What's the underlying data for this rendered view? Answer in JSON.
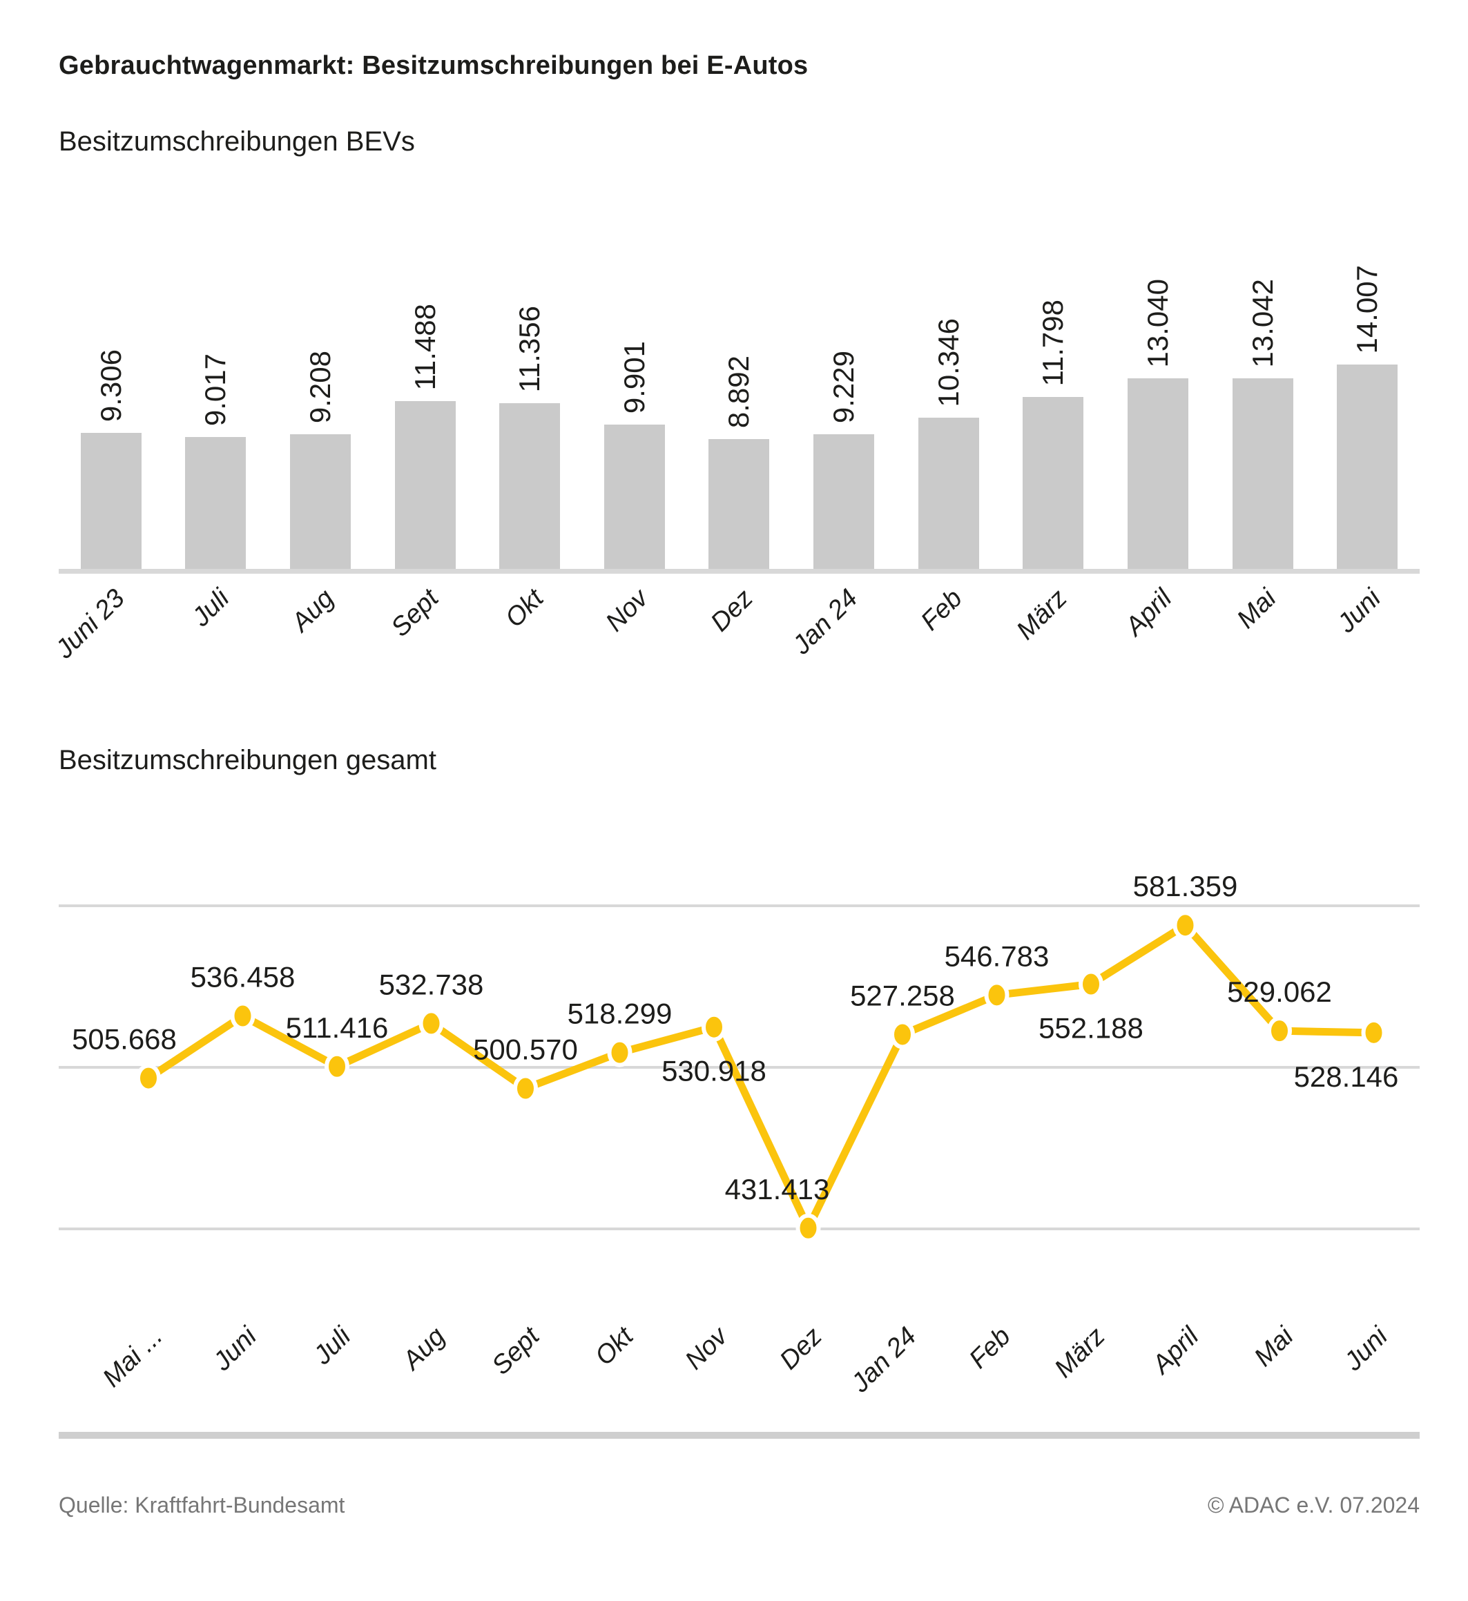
{
  "page": {
    "title": "Gebrauchtwagenmarkt: Besitzumschreibungen bei E-Autos"
  },
  "colors": {
    "accent_yellow": "#fbc40d",
    "bar_gray": "#cacaca",
    "grid_gray": "#d8d8d8",
    "text_dark": "#1d1d1b",
    "footer_gray": "#767676"
  },
  "chart_data": [
    {
      "type": "bar",
      "title": "Besitzumschreibungen BEVs",
      "categories": [
        "Juni 23",
        "Juli",
        "Aug",
        "Sept",
        "Okt",
        "Nov",
        "Dez",
        "Jan 24",
        "Feb",
        "März",
        "April",
        "Mai",
        "Juni"
      ],
      "values": [
        9306,
        9017,
        9208,
        11488,
        11356,
        9901,
        8892,
        9229,
        10346,
        11798,
        13040,
        13042,
        14007
      ],
      "value_labels": [
        "9.306",
        "9.017",
        "9.208",
        "11.488",
        "11.356",
        "9.901",
        "8.892",
        "9.229",
        "10.346",
        "11.798",
        "13.040",
        "13.042",
        "14.007"
      ],
      "xlabel": "",
      "ylabel": "",
      "ylim": [
        0,
        14007
      ],
      "grid": false,
      "legend": "none"
    },
    {
      "type": "line",
      "title": "Besitzumschreibungen gesamt",
      "categories": [
        "Mai ...",
        "Juni",
        "Juli",
        "Aug",
        "Sept",
        "Okt",
        "Nov",
        "Dez",
        "Jan 24",
        "Feb",
        "März",
        "April",
        "Mai",
        "Juni"
      ],
      "values": [
        505668,
        536458,
        511416,
        532738,
        500570,
        518299,
        530918,
        431413,
        527258,
        546783,
        552188,
        581359,
        529062,
        528146
      ],
      "value_labels": [
        "505.668",
        "536.458",
        "511.416",
        "532.738",
        "500.570",
        "518.299",
        "530.918",
        "431.413",
        "527.258",
        "546.783",
        "552.188",
        "581.359",
        "529.062",
        "528.146"
      ],
      "label_positions": [
        "above",
        "above",
        "above",
        "above",
        "above",
        "above",
        "below",
        "above",
        "above",
        "above",
        "below",
        "above",
        "above",
        "below"
      ],
      "label_dx": [
        -35,
        0,
        0,
        0,
        0,
        0,
        0,
        -45,
        0,
        0,
        0,
        0,
        0,
        -40
      ],
      "xlabel": "",
      "ylabel": "",
      "ylim": [
        431000,
        591000
      ],
      "gridlines": 3,
      "grid": true,
      "legend": "none"
    }
  ],
  "footer": {
    "source": "Quelle: Kraftfahrt-Bundesamt",
    "copyright": "© ADAC e.V. 07.2024"
  }
}
